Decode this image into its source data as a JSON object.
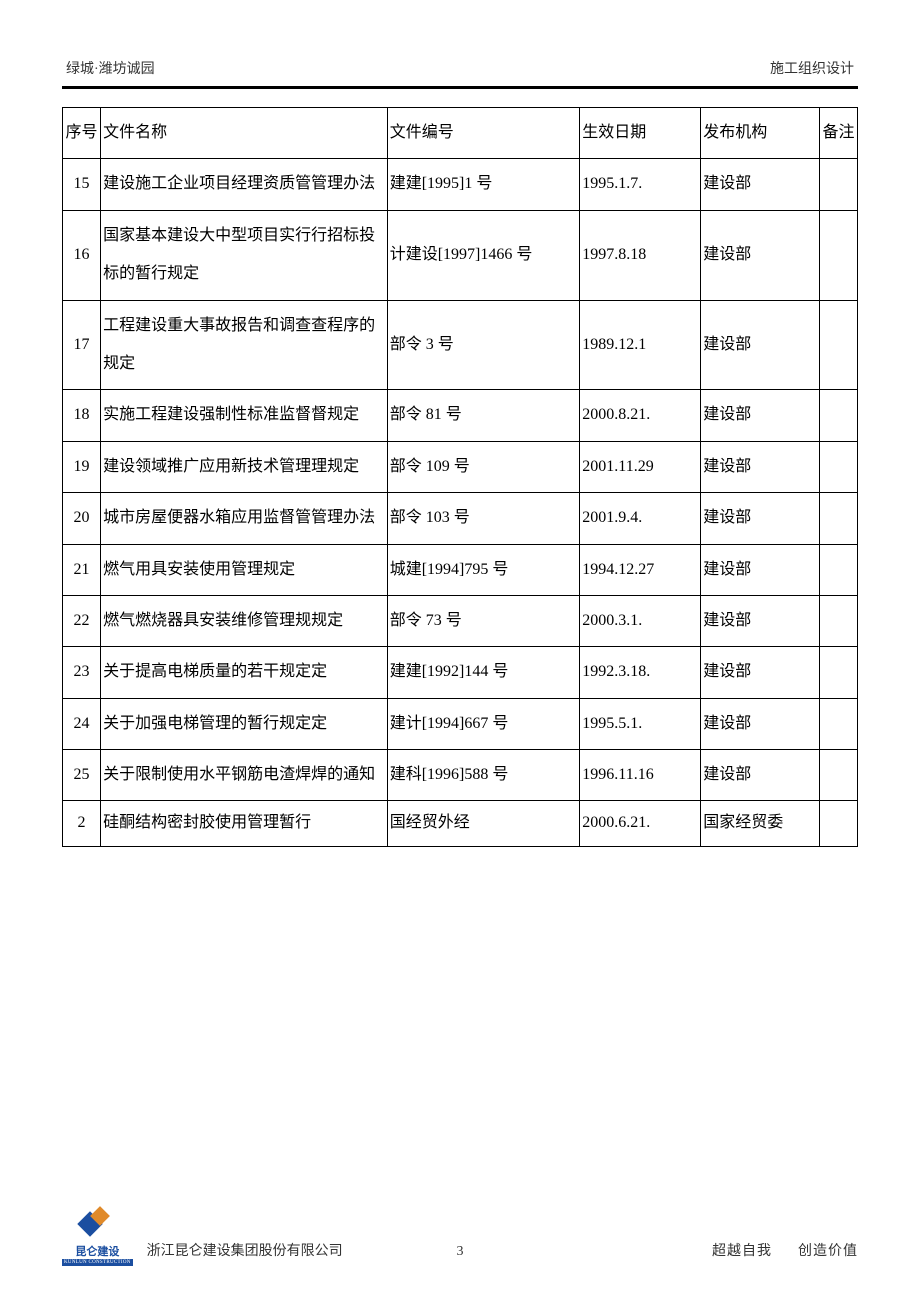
{
  "header": {
    "left": "绿城·潍坊诚园",
    "right": "施工组织设计"
  },
  "table": {
    "columns": {
      "seq": "序号",
      "name": "文件名称",
      "num": "文件编号",
      "date": "生效日期",
      "org": "发布机构",
      "note": "备注"
    },
    "rows": [
      {
        "seq": "15",
        "name": "建设施工企业项目经理资质管管理办法",
        "num": "建建[1995]1 号",
        "date": "1995.1.7.",
        "org": "建设部",
        "note": ""
      },
      {
        "seq": "16",
        "name": "国家基本建设大中型项目实行行招标投标的暂行规定",
        "num": "计建设[1997]1466 号",
        "date": "1997.8.18",
        "org": "建设部",
        "note": ""
      },
      {
        "seq": "17",
        "name": "工程建设重大事故报告和调查查程序的规定",
        "num": "部令 3 号",
        "date": "1989.12.1",
        "org": "建设部",
        "note": ""
      },
      {
        "seq": "18",
        "name": "实施工程建设强制性标准监督督规定",
        "num": "部令 81 号",
        "date": "2000.8.21.",
        "org": "建设部",
        "note": ""
      },
      {
        "seq": "19",
        "name": "建设领域推广应用新技术管理理规定",
        "num": "部令 109 号",
        "date": "2001.11.29",
        "org": "建设部",
        "note": ""
      },
      {
        "seq": "20",
        "name": "城市房屋便器水箱应用监督管管理办法",
        "num": "部令 103 号",
        "date": "2001.9.4.",
        "org": "建设部",
        "note": ""
      },
      {
        "seq": "21",
        "name": "燃气用具安装使用管理规定",
        "num": "城建[1994]795 号",
        "date": "1994.12.27",
        "org": "建设部",
        "note": ""
      },
      {
        "seq": "22",
        "name": "燃气燃烧器具安装维修管理规规定",
        "num": "部令 73 号",
        "date": "2000.3.1.",
        "org": "建设部",
        "note": ""
      },
      {
        "seq": "23",
        "name": "关于提高电梯质量的若干规定定",
        "num": "建建[1992]144 号",
        "date": "1992.3.18.",
        "org": "建设部",
        "note": ""
      },
      {
        "seq": "24",
        "name": "关于加强电梯管理的暂行规定定",
        "num": "建计[1994]667 号",
        "date": "1995.5.1.",
        "org": "建设部",
        "note": ""
      },
      {
        "seq": "25",
        "name": "关于限制使用水平钢筋电渣焊焊的通知",
        "num": "建科[1996]588 号",
        "date": "1996.11.16",
        "org": "建设部",
        "note": ""
      },
      {
        "seq": "2",
        "name": "硅酮结构密封胶使用管理暂行",
        "num": "国经贸外经",
        "date": "2000.6.21.",
        "org": "国家经贸委",
        "note": "",
        "last": true
      }
    ]
  },
  "footer": {
    "logo_cn": "昆仑建设",
    "logo_en": "KUNLUN CONSTRUCTION",
    "company": "浙江昆仑建设集团股份有限公司",
    "page": "3",
    "slogan_a": "超越自我",
    "slogan_b": "创造价值"
  }
}
